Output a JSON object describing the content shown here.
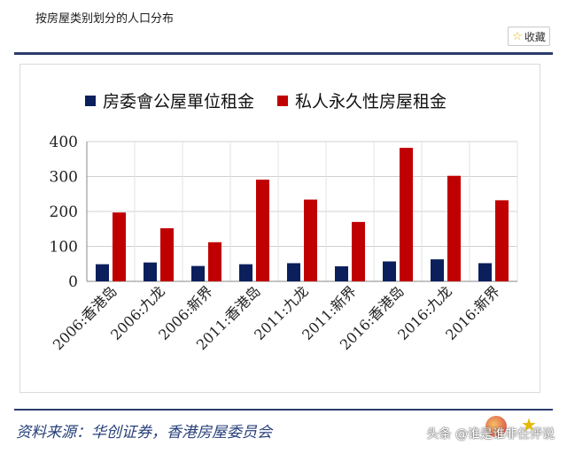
{
  "header": {
    "title": "按房屋类别划分的人口分布",
    "favorite_label": "收藏"
  },
  "colors": {
    "series_public": "#0b1f5c",
    "series_private": "#c00000",
    "rule": "#2a3d6b",
    "source_text": "#27407a"
  },
  "chart_data": {
    "type": "bar",
    "categories": [
      "2006:香港岛",
      "2006:九龙",
      "2006:新界",
      "2011:香港岛",
      "2011:九龙",
      "2011:新界",
      "2016:香港岛",
      "2016:九龙",
      "2016:新界"
    ],
    "series": [
      {
        "name": "房委會公屋單位租金",
        "color": "#0b1f5c",
        "values": [
          49,
          54,
          44,
          49,
          52,
          43,
          57,
          63,
          52
        ]
      },
      {
        "name": "私人永久性房屋租金",
        "color": "#c00000",
        "values": [
          197,
          152,
          112,
          291,
          234,
          170,
          382,
          302,
          232
        ]
      }
    ],
    "ylim": [
      0,
      400
    ],
    "yticks": [
      "0",
      "100",
      "200",
      "300",
      "400"
    ],
    "grid": true,
    "legend_position": "top"
  },
  "footer": {
    "source": "资料来源：华创证券，香港房屋委员会",
    "watermark": "头条 @谁是谁非任评说"
  }
}
